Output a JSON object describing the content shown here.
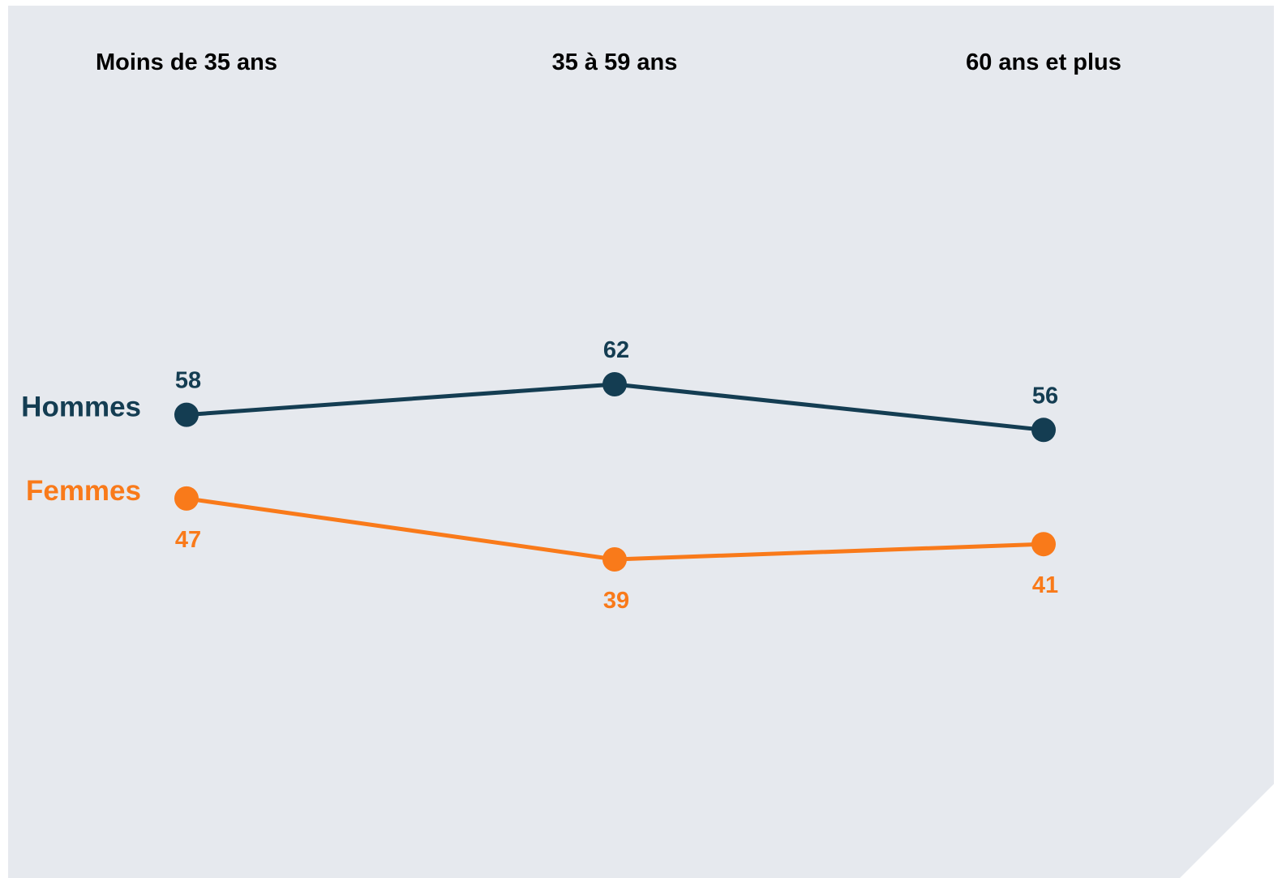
{
  "chart_data": {
    "type": "line",
    "categories": [
      "Moins de 35 ans",
      "35 à 59 ans",
      "60 ans et plus"
    ],
    "series": [
      {
        "name": "Hommes",
        "values": [
          58,
          62,
          56
        ],
        "color": "#143d52",
        "label_position": "above"
      },
      {
        "name": "Femmes",
        "values": [
          47,
          39,
          41
        ],
        "color": "#f97a1a",
        "label_position": "below"
      }
    ],
    "ylim": [
      20,
      80
    ],
    "grid": false,
    "legend": "left",
    "background_color": "#e6e9ee"
  }
}
